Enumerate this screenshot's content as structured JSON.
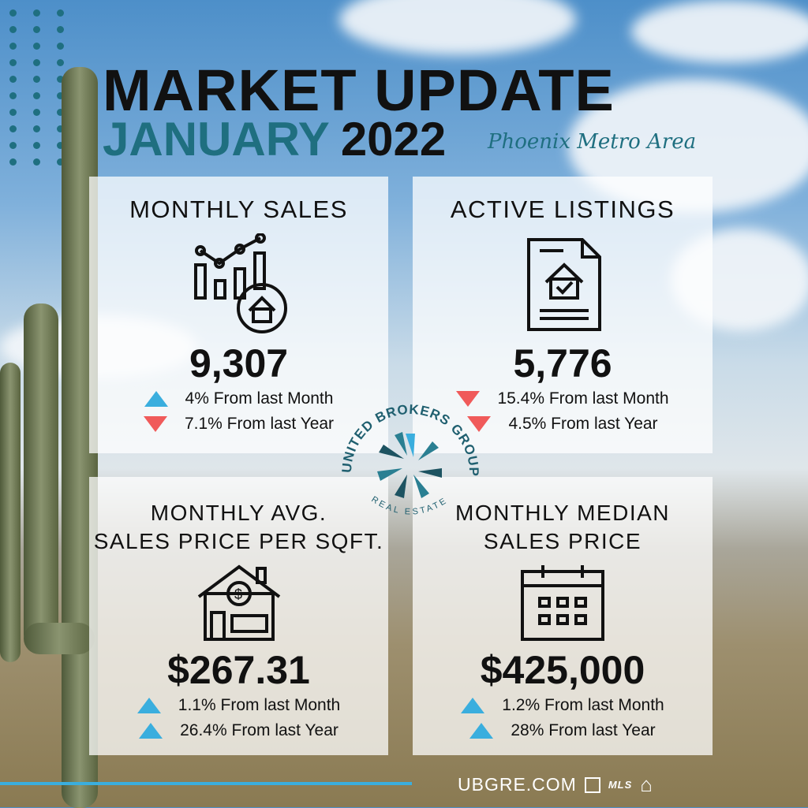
{
  "header": {
    "title": "MARKET UPDATE",
    "month": "JANUARY",
    "year": "2022",
    "region": "Phoenix Metro Area"
  },
  "panels": [
    {
      "title": "MONTHLY SALES",
      "icon": "bar-chart-house-icon",
      "value": "9,307",
      "changes": [
        {
          "dir": "up",
          "text": "4% From last Month"
        },
        {
          "dir": "down",
          "text": "7.1% From last Year"
        }
      ]
    },
    {
      "title": "ACTIVE LISTINGS",
      "icon": "document-house-icon",
      "value": "5,776",
      "changes": [
        {
          "dir": "down",
          "text": "15.4% From last Month"
        },
        {
          "dir": "down",
          "text": "4.5% From last Year"
        }
      ]
    },
    {
      "title_line1": "MONTHLY AVG.",
      "title_line2": "SALES PRICE PER SQFT.",
      "icon": "house-dollar-icon",
      "value": "$267.31",
      "changes": [
        {
          "dir": "up",
          "text": "1.1% From last Month"
        },
        {
          "dir": "up",
          "text": "26.4% From last Year"
        }
      ]
    },
    {
      "title_line1": "MONTHLY MEDIAN",
      "title_line2": "SALES PRICE",
      "icon": "calendar-icon",
      "value": "$425,000",
      "changes": [
        {
          "dir": "up",
          "text": "1.2% From last Month"
        },
        {
          "dir": "up",
          "text": "28% From last Year"
        }
      ]
    }
  ],
  "logo": {
    "name": "UNITED BROKERS GROUP",
    "tagline": "REAL ESTATE"
  },
  "footer": {
    "website": "UBGRE.COM",
    "mls": "MLS"
  },
  "colors": {
    "teal": "#1f6f80",
    "up": "#3aaede",
    "down": "#f05a5a"
  }
}
